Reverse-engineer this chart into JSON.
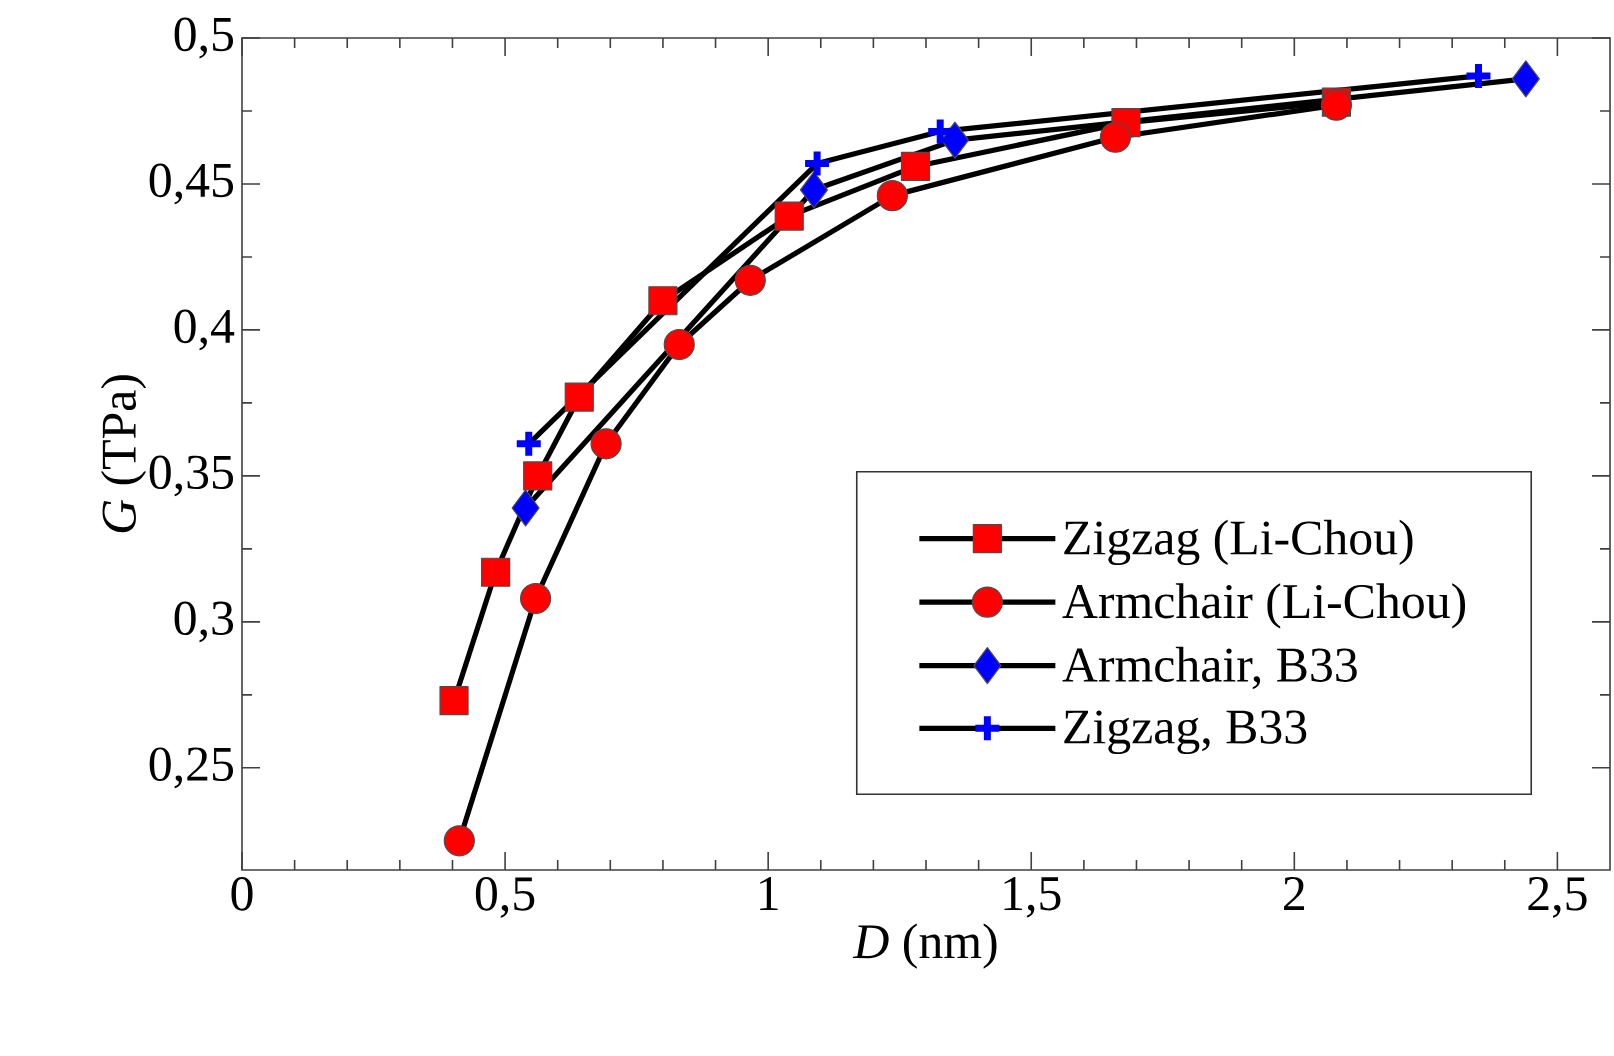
{
  "chart_data": {
    "type": "line",
    "xlabel": "*D* (nm)",
    "ylabel": "*G* (TPa)",
    "xlim": [
      0,
      2.6
    ],
    "ylim": [
      0.215,
      0.5
    ],
    "xticks": [
      0,
      {
        "value": 0.5,
        "label": "0,5"
      },
      1,
      {
        "value": 1.5,
        "label": "1,5"
      },
      2,
      {
        "value": 2.5,
        "label": "2,5"
      }
    ],
    "yticks": [
      {
        "value": 0.25,
        "label": "0,25"
      },
      {
        "value": 0.3,
        "label": "0,3"
      },
      {
        "value": 0.35,
        "label": "0,35"
      },
      {
        "value": 0.4,
        "label": "0,4"
      },
      {
        "value": 0.45,
        "label": "0,45"
      },
      {
        "value": 0.5,
        "label": "0,5"
      }
    ],
    "grid": false,
    "legend": "bottom right",
    "line_style": "solid",
    "series": [
      {
        "name": "Zigzag (Li-Chou)",
        "color": "#ff0000",
        "marker": "square",
        "x": [
          0.403,
          0.482,
          0.562,
          0.641,
          0.8,
          1.04,
          1.28,
          1.68,
          2.08
        ],
        "values": [
          0.273,
          0.317,
          0.35,
          0.377,
          0.41,
          0.439,
          0.456,
          0.471,
          0.478
        ]
      },
      {
        "name": "Armchair (Li-Chou)",
        "color": "#ff0000",
        "marker": "circle",
        "x": [
          0.413,
          0.558,
          0.692,
          0.831,
          0.966,
          1.236,
          1.66,
          2.08
        ],
        "values": [
          0.225,
          0.308,
          0.361,
          0.395,
          0.417,
          0.446,
          0.466,
          0.477
        ]
      },
      {
        "name": "Armchair, B33",
        "color": "#0000ff",
        "marker": "diamond",
        "x": [
          0.539,
          1.087,
          1.355,
          2.44
        ],
        "values": [
          0.339,
          0.448,
          0.465,
          0.486
        ]
      },
      {
        "name": "Zigzag, B33",
        "color": "#0000ff",
        "marker": "cross",
        "x": [
          0.545,
          1.093,
          1.327,
          2.35
        ],
        "values": [
          0.361,
          0.457,
          0.468,
          0.487
        ]
      }
    ]
  }
}
